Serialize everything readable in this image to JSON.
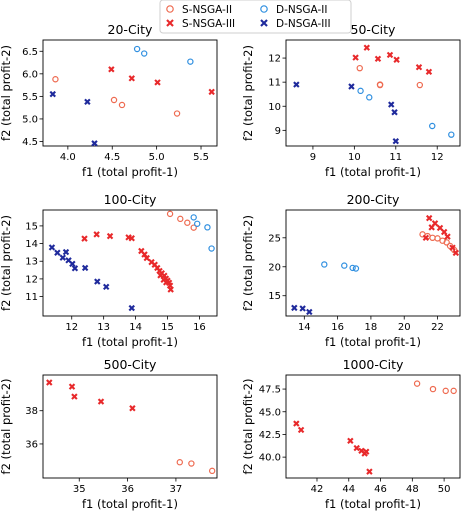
{
  "legend": {
    "entries": [
      {
        "label": "S-NSGA-II",
        "marker": "circle",
        "color": "#ee6a50"
      },
      {
        "label": "S-NSGA-III",
        "marker": "x",
        "color": "#e8292b"
      },
      {
        "label": "D-NSGA-II",
        "marker": "circle",
        "color": "#2f8fe0"
      },
      {
        "label": "D-NSGA-III",
        "marker": "x",
        "color": "#1f2a9c"
      }
    ]
  },
  "chart_data": [
    {
      "type": "scatter",
      "title": "20-City",
      "xlabel": "f1 (total profit-1)",
      "ylabel": "f2 (total profit-2)",
      "xlim": [
        3.72,
        5.68
      ],
      "ylim": [
        4.4,
        6.75
      ],
      "xticks": [
        4.0,
        4.5,
        5.0,
        5.5
      ],
      "xtick_labels": [
        "4.0",
        "4.5",
        "5.0",
        "5.5"
      ],
      "yticks": [
        4.5,
        5.0,
        5.5,
        6.0,
        6.5
      ],
      "ytick_labels": [
        "4.5",
        "5.0",
        "5.5",
        "6.0",
        "6.5"
      ],
      "series": [
        {
          "name": "S-NSGA-II",
          "points": [
            [
              3.86,
              5.88
            ],
            [
              4.52,
              5.42
            ],
            [
              4.61,
              5.31
            ],
            [
              5.23,
              5.12
            ]
          ]
        },
        {
          "name": "S-NSGA-III",
          "points": [
            [
              4.49,
              6.1
            ],
            [
              4.72,
              5.9
            ],
            [
              5.01,
              5.81
            ],
            [
              5.62,
              5.6
            ]
          ]
        },
        {
          "name": "D-NSGA-II",
          "points": [
            [
              4.78,
              6.55
            ],
            [
              4.86,
              6.45
            ],
            [
              5.38,
              6.27
            ]
          ]
        },
        {
          "name": "D-NSGA-III",
          "points": [
            [
              3.83,
              5.55
            ],
            [
              4.22,
              5.38
            ],
            [
              4.3,
              4.46
            ]
          ]
        }
      ]
    },
    {
      "type": "scatter",
      "title": "50-City",
      "xlabel": "f1 (total profit-1)",
      "ylabel": "f2 (total profit-2)",
      "xlim": [
        8.35,
        12.55
      ],
      "ylim": [
        8.35,
        12.75
      ],
      "xticks": [
        9,
        10,
        11,
        12
      ],
      "xtick_labels": [
        "9",
        "10",
        "11",
        "12"
      ],
      "yticks": [
        9,
        10,
        11,
        12
      ],
      "ytick_labels": [
        "9",
        "10",
        "11",
        "12"
      ],
      "series": [
        {
          "name": "S-NSGA-II",
          "points": [
            [
              10.13,
              11.58
            ],
            [
              10.62,
              10.9
            ],
            [
              11.58,
              10.88
            ],
            [
              10.62,
              10.88
            ]
          ]
        },
        {
          "name": "S-NSGA-III",
          "points": [
            [
              10.3,
              12.43
            ],
            [
              10.03,
              12.02
            ],
            [
              10.57,
              11.97
            ],
            [
              10.86,
              12.13
            ],
            [
              11.02,
              11.93
            ],
            [
              11.56,
              11.62
            ],
            [
              11.8,
              11.43
            ]
          ]
        },
        {
          "name": "D-NSGA-II",
          "points": [
            [
              10.15,
              10.64
            ],
            [
              10.36,
              10.37
            ],
            [
              11.88,
              9.18
            ],
            [
              12.34,
              8.82
            ]
          ]
        },
        {
          "name": "D-NSGA-III",
          "points": [
            [
              8.6,
              10.9
            ],
            [
              9.93,
              10.82
            ],
            [
              10.89,
              10.07
            ],
            [
              10.97,
              9.75
            ],
            [
              11.0,
              8.55
            ]
          ]
        }
      ]
    },
    {
      "type": "scatter",
      "title": "100-City",
      "xlabel": "f1 (total profit-1)",
      "ylabel": "f2 (total profit-2)",
      "xlim": [
        11.1,
        16.55
      ],
      "ylim": [
        9.9,
        15.9
      ],
      "xticks": [
        12,
        13,
        14,
        15,
        16
      ],
      "xtick_labels": [
        "12",
        "13",
        "14",
        "15",
        "16"
      ],
      "yticks": [
        11,
        12,
        13,
        14,
        15
      ],
      "ytick_labels": [
        "11",
        "12",
        "13",
        "14",
        "15"
      ],
      "series": [
        {
          "name": "S-NSGA-II",
          "points": [
            [
              15.08,
              15.68
            ],
            [
              15.4,
              15.4
            ],
            [
              15.62,
              15.18
            ],
            [
              15.82,
              14.9
            ]
          ]
        },
        {
          "name": "S-NSGA-III",
          "points": [
            [
              12.78,
              14.52
            ],
            [
              12.4,
              14.28
            ],
            [
              13.2,
              14.42
            ],
            [
              13.78,
              14.35
            ],
            [
              13.88,
              14.3
            ],
            [
              14.18,
              13.58
            ],
            [
              14.28,
              13.38
            ],
            [
              14.35,
              13.18
            ],
            [
              14.5,
              12.95
            ],
            [
              14.6,
              12.8
            ],
            [
              14.68,
              12.62
            ],
            [
              14.75,
              12.45
            ],
            [
              14.82,
              12.32
            ],
            [
              14.9,
              12.18
            ],
            [
              14.95,
              12.02
            ],
            [
              15.0,
              11.9
            ],
            [
              15.05,
              11.78
            ],
            [
              15.08,
              11.62
            ],
            [
              15.1,
              11.4
            ],
            [
              14.88,
              11.95
            ],
            [
              14.78,
              12.2
            ],
            [
              14.96,
              11.8
            ]
          ]
        },
        {
          "name": "D-NSGA-II",
          "points": [
            [
              15.82,
              15.48
            ],
            [
              15.93,
              15.12
            ],
            [
              16.25,
              14.92
            ],
            [
              16.38,
              13.72
            ]
          ]
        },
        {
          "name": "D-NSGA-III",
          "points": [
            [
              11.38,
              13.78
            ],
            [
              11.55,
              13.48
            ],
            [
              11.72,
              13.2
            ],
            [
              11.82,
              13.52
            ],
            [
              11.9,
              13.05
            ],
            [
              12.02,
              12.85
            ],
            [
              12.1,
              12.6
            ],
            [
              12.42,
              12.62
            ],
            [
              12.8,
              11.85
            ],
            [
              13.08,
              11.55
            ],
            [
              13.88,
              10.35
            ]
          ]
        }
      ]
    },
    {
      "type": "scatter",
      "title": "200-City",
      "xlabel": "f1 (total profit-1)",
      "ylabel": "f2 (total profit-2)",
      "xlim": [
        12.9,
        23.35
      ],
      "ylim": [
        11.5,
        29.8
      ],
      "xticks": [
        14,
        16,
        18,
        20,
        22
      ],
      "xtick_labels": [
        "14",
        "16",
        "18",
        "20",
        "22"
      ],
      "yticks": [
        15,
        20,
        25
      ],
      "ytick_labels": [
        "15",
        "20",
        "25"
      ],
      "series": [
        {
          "name": "S-NSGA-II",
          "points": [
            [
              21.1,
              25.6
            ],
            [
              21.4,
              25.3
            ],
            [
              21.7,
              25.0
            ],
            [
              22.0,
              24.9
            ],
            [
              22.3,
              24.5
            ],
            [
              22.55,
              24.2
            ],
            [
              22.75,
              23.6
            ],
            [
              23.0,
              22.9
            ]
          ]
        },
        {
          "name": "S-NSGA-III",
          "points": [
            [
              21.5,
              28.4
            ],
            [
              21.85,
              27.5
            ],
            [
              21.65,
              26.8
            ],
            [
              22.15,
              26.7
            ],
            [
              22.4,
              26.0
            ],
            [
              22.6,
              25.2
            ],
            [
              22.9,
              23.3
            ],
            [
              23.1,
              22.4
            ],
            [
              21.3,
              25.0
            ]
          ]
        },
        {
          "name": "D-NSGA-II",
          "points": [
            [
              15.2,
              20.4
            ],
            [
              16.4,
              20.2
            ],
            [
              16.9,
              19.8
            ],
            [
              17.1,
              19.7
            ]
          ]
        },
        {
          "name": "D-NSGA-III",
          "points": [
            [
              13.4,
              12.9
            ],
            [
              13.9,
              12.8
            ],
            [
              14.3,
              12.2
            ]
          ]
        }
      ]
    },
    {
      "type": "scatter",
      "title": "500-City",
      "xlabel": "f1 (total profit-1)",
      "ylabel": "f2 (total profit-2)",
      "xlim": [
        34.25,
        37.85
      ],
      "ylim": [
        33.95,
        40.15
      ],
      "xticks": [
        35,
        36,
        37
      ],
      "xtick_labels": [
        "35",
        "36",
        "37"
      ],
      "yticks": [
        36,
        38
      ],
      "ytick_labels": [
        "36",
        "38"
      ],
      "series": [
        {
          "name": "S-NSGA-II",
          "points": [
            [
              37.08,
              34.9
            ],
            [
              37.32,
              34.82
            ],
            [
              37.75,
              34.38
            ]
          ]
        },
        {
          "name": "S-NSGA-III",
          "points": [
            [
              34.38,
              39.7
            ],
            [
              34.85,
              39.45
            ],
            [
              34.9,
              38.85
            ],
            [
              35.45,
              38.55
            ],
            [
              36.1,
              38.15
            ]
          ]
        },
        {
          "name": "D-NSGA-II",
          "points": []
        },
        {
          "name": "D-NSGA-III",
          "points": []
        }
      ]
    },
    {
      "type": "scatter",
      "title": "1000-City",
      "xlabel": "f1 (total profit-1)",
      "ylabel": "f2 (total profit-2)",
      "xlim": [
        40.05,
        51.0
      ],
      "ylim": [
        37.7,
        49.05
      ],
      "xticks": [
        42,
        44,
        46,
        48,
        50
      ],
      "xtick_labels": [
        "42",
        "44",
        "46",
        "48",
        "50"
      ],
      "yticks": [
        40.0,
        42.5,
        45.0,
        47.5
      ],
      "ytick_labels": [
        "40.0",
        "42.5",
        "45.0",
        "47.5"
      ],
      "series": [
        {
          "name": "S-NSGA-II",
          "points": [
            [
              48.3,
              48.1
            ],
            [
              49.3,
              47.5
            ],
            [
              50.1,
              47.3
            ],
            [
              50.6,
              47.3
            ]
          ]
        },
        {
          "name": "S-NSGA-III",
          "points": [
            [
              40.7,
              43.7
            ],
            [
              41.0,
              43.0
            ],
            [
              44.1,
              41.8
            ],
            [
              44.5,
              41.0
            ],
            [
              44.8,
              40.7
            ],
            [
              45.1,
              40.6
            ],
            [
              45.0,
              40.4
            ],
            [
              45.3,
              38.4
            ]
          ]
        },
        {
          "name": "D-NSGA-II",
          "points": []
        },
        {
          "name": "D-NSGA-III",
          "points": []
        }
      ]
    }
  ]
}
